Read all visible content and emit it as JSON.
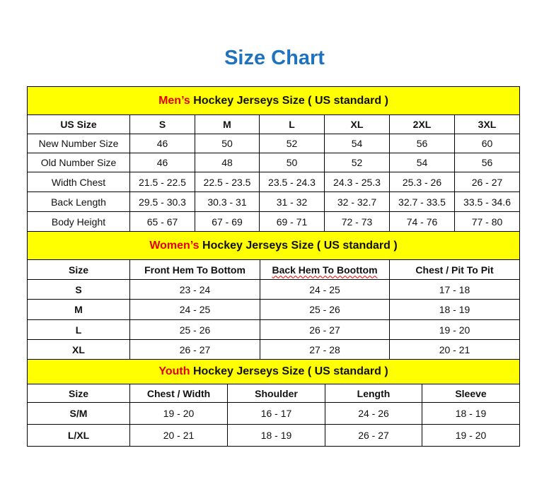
{
  "title": "Size Chart",
  "colors": {
    "title": "#1E73BE",
    "section_bg": "#FFFF00",
    "accent_red": "#E50000"
  },
  "men": {
    "heading_prefix": "Men’s",
    "heading_rest": " Hockey Jerseys Size ( US standard )",
    "columns": [
      "US Size",
      "S",
      "M",
      "L",
      "XL",
      "2XL",
      "3XL"
    ],
    "rows": [
      [
        "New Number Size",
        "46",
        "50",
        "52",
        "54",
        "56",
        "60"
      ],
      [
        "Old Number Size",
        "46",
        "48",
        "50",
        "52",
        "54",
        "56"
      ],
      [
        "Width Chest",
        "21.5 - 22.5",
        "22.5 - 23.5",
        "23.5 - 24.3",
        "24.3 - 25.3",
        "25.3 - 26",
        "26 - 27"
      ],
      [
        "Back Length",
        "29.5 - 30.3",
        "30.3 - 31",
        "31 - 32",
        "32 - 32.7",
        "32.7 - 33.5",
        "33.5 - 34.6"
      ],
      [
        "Body Height",
        "65 - 67",
        "67 - 69",
        "69 - 71",
        "72 - 73",
        "74 - 76",
        "77 - 80"
      ]
    ]
  },
  "women": {
    "heading_prefix": "Women’s",
    "heading_rest": " Hockey Jerseys Size ( US standard )",
    "columns": [
      "Size",
      "Front Hem To Bottom",
      "Back Hem To Boottom",
      "Chest / Pit To Pit"
    ],
    "rows": [
      [
        "S",
        "23 - 24",
        "24 - 25",
        "17 - 18"
      ],
      [
        "M",
        "24 - 25",
        "25 - 26",
        "18 - 19"
      ],
      [
        "L",
        "25 - 26",
        "26 - 27",
        "19 - 20"
      ],
      [
        "XL",
        "26 - 27",
        "27 - 28",
        "20 - 21"
      ]
    ]
  },
  "youth": {
    "heading_prefix": "Youth",
    "heading_rest": " Hockey Jerseys Size ( US standard )",
    "columns": [
      "Size",
      "Chest / Width",
      "Shoulder",
      "Length",
      "Sleeve"
    ],
    "rows": [
      [
        "S/M",
        "19 - 20",
        "16 - 17",
        "24 - 26",
        "18 - 19"
      ],
      [
        "L/XL",
        "20 - 21",
        "18 - 19",
        "26 - 27",
        "19 - 20"
      ]
    ]
  }
}
